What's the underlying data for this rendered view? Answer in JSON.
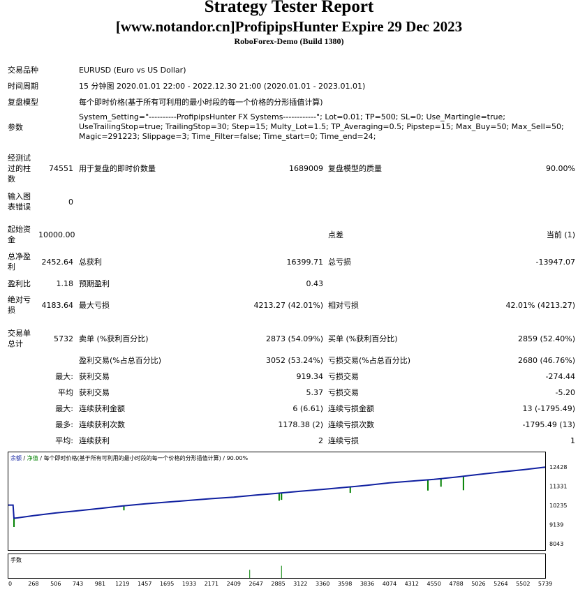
{
  "header": {
    "title": "Strategy Tester Report",
    "subtitle": "[www.notandor.cn]ProfipipsHunter Expire 29 Dec 2023",
    "server": "RoboForex-Demo (Build 1380)"
  },
  "info": {
    "symbol_label": "交易品种",
    "symbol_value": "EURUSD (Euro vs US Dollar)",
    "period_label": "时间周期",
    "period_value": "15 分钟图 2020.01.01 22:00 - 2022.12.30 21:00 (2020.01.01 - 2023.01.01)",
    "model_label": "复盘模型",
    "model_value": "每个即时价格(基于所有可利用的最小时段的每一个价格的分形插值计算)",
    "params_label": "参数",
    "params_lines": [
      "System_Setting=\"----------ProfipipsHunter FX Systems------------\"; Lot=0.01; TP=500; SL=0; Use_Martingle=true;",
      "UseTrailingStop=true; TrailingStop=30; Step=15; Multy_Lot=1.5; TP_Averaging=0.5; Pipstep=15; Max_Buy=50; Max_Sell=50;",
      "Magic=291223; Slippage=3; Time_Filter=false; Time_start=0; Time_end=24;"
    ]
  },
  "stats": {
    "bars_label": "经测试过的柱数",
    "bars_value": "74551",
    "ticks_label": "用于复盘的即时价数量",
    "ticks_value": "1689009",
    "quality_label": "复盘模型的质量",
    "quality_value": "90.00%",
    "errors_label": "输入图表错误",
    "errors_value": "0",
    "deposit_label": "起始资金",
    "deposit_value": "10000.00",
    "spread_label": "点差",
    "spread_value": "当前 (1)",
    "net_label": "总净盈利",
    "net_value": "2452.64",
    "gross_profit_label": "总获利",
    "gross_profit_value": "16399.71",
    "gross_loss_label": "总亏损",
    "gross_loss_value": "-13947.07",
    "pf_label": "盈利比",
    "pf_value": "1.18",
    "payoff_label": "预期盈利",
    "payoff_value": "0.43",
    "abs_dd_label": "绝对亏损",
    "abs_dd_value": "4183.64",
    "max_dd_label": "最大亏损",
    "max_dd_value": "4213.27 (42.01%)",
    "rel_dd_label": "相对亏损",
    "rel_dd_value": "42.01% (4213.27)",
    "trades_label": "交易单总计",
    "trades_value": "5732",
    "short_label": "卖单 (%获利百分比)",
    "short_value": "2873 (54.09%)",
    "long_label": "买单 (%获利百分比)",
    "long_value": "2859 (52.40%)",
    "win_label": "盈利交易(%占总百分比)",
    "win_value": "3052 (53.24%)",
    "loss_label": "亏损交易(%占总百分比)",
    "loss_value": "2680 (46.76%)",
    "largest_prefix": "最大:",
    "largest_win_label": "获利交易",
    "largest_win_value": "919.34",
    "largest_loss_label": "亏损交易",
    "largest_loss_value": "-274.44",
    "avg_prefix": "平均",
    "avg_win_label": "获利交易",
    "avg_win_value": "5.37",
    "avg_loss_label": "亏损交易",
    "avg_loss_value": "-5.20",
    "max_prefix": "最大:",
    "max_consec_win_label": "连续获利金额",
    "max_consec_win_value": "6 (6.61)",
    "max_consec_loss_label": "连续亏损金额",
    "max_consec_loss_value": "13 (-1795.49)",
    "most_prefix": "最多:",
    "most_consec_win_label": "连续获利次数",
    "most_consec_win_value": "1178.38 (2)",
    "most_consec_loss_label": "连续亏损次数",
    "most_consec_loss_value": "-1795.49 (13)",
    "avgc_prefix": "平均:",
    "avg_consec_win_label": "连续获利",
    "avg_consec_win_value": "2",
    "avg_consec_loss_label": "连续亏损",
    "avg_consec_loss_value": "1"
  },
  "chart_data": {
    "type": "line",
    "legend": {
      "balance": "余额",
      "separator": " / ",
      "equity": "净值",
      "rest": " / 每个即时价格(基于所有可利用的最小时段的每一个价格的分形插值计算) / 90.00%"
    },
    "y_ticks": [
      12428,
      11331,
      10235,
      9139,
      8043
    ],
    "x_ticks": [
      0,
      268,
      506,
      743,
      981,
      1219,
      1457,
      1695,
      1933,
      2171,
      2409,
      2647,
      2885,
      3122,
      3360,
      3598,
      3836,
      4074,
      4312,
      4550,
      4788,
      5026,
      5264,
      5502,
      5739
    ],
    "ylim": [
      8043,
      12428
    ],
    "xlim": [
      0,
      5739
    ],
    "series": [
      {
        "color": "#1020a0",
        "x": [
          0,
          50,
          60,
          100,
          268,
          506,
          743,
          981,
          1219,
          1457,
          1695,
          1933,
          2171,
          2409,
          2647,
          2885,
          3122,
          3360,
          3598,
          3836,
          4074,
          4312,
          4550,
          4788,
          5026,
          5264,
          5502,
          5739
        ],
        "y": [
          10250,
          10250,
          9500,
          9520,
          9650,
          9800,
          9930,
          10060,
          10200,
          10320,
          10420,
          10520,
          10620,
          10700,
          10820,
          10930,
          11040,
          11150,
          11260,
          11380,
          11520,
          11620,
          11720,
          11850,
          12000,
          12140,
          12270,
          12420
        ]
      }
    ],
    "equity_spikes": [
      {
        "x": 60,
        "low": 9000
      },
      {
        "x": 1235,
        "low": 9950
      },
      {
        "x": 2895,
        "low": 10500
      },
      {
        "x": 2920,
        "low": 10550
      },
      {
        "x": 3655,
        "low": 10950
      },
      {
        "x": 4485,
        "low": 11080
      },
      {
        "x": 4625,
        "low": 11300
      },
      {
        "x": 4865,
        "low": 11100
      }
    ],
    "lots_label": "手数",
    "lots": [
      {
        "x": 2580,
        "v": 0.4
      },
      {
        "x": 2920,
        "v": 0.6
      }
    ]
  }
}
